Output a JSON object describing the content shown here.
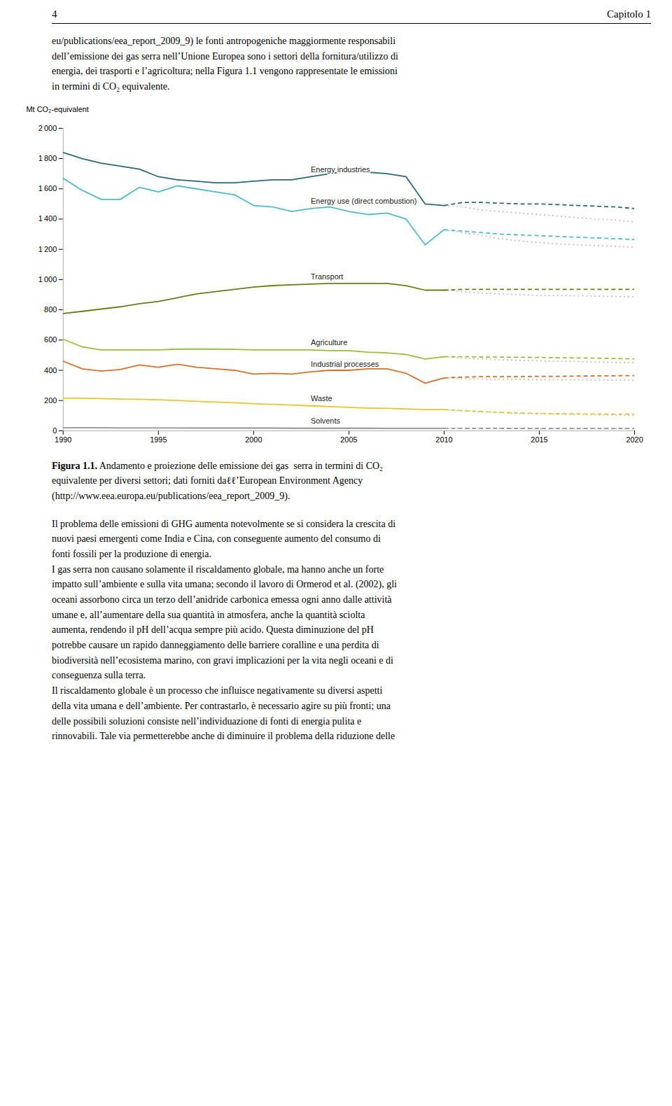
{
  "page": {
    "header_left": "4",
    "header_right": "Capitolo 1",
    "body_top": "eu/publications/eea_report_2009_9) le fonti antropogeniche maggiormente responsabili\ndell’emissione dei gas serra nell’Unione Europea sono i settori della fornitura/utilizzo di\nenergia, dei trasporti e l’agricoltura; nella Figura 1.1 vengono rappresentate le emissioni\nin termini di CO₂ equivalente.",
    "caption_bold": "Figura 1.1.",
    "caption": " Andamento e proiezione delle emissione dei gas  serra in termini di CO₂\nequivalente per diversi settori; dati forniti daℓℓ’European Environment Agency\n(http://www.eea.europa.eu/publications/eea_report_2009_9).",
    "body_bottom": "Il problema delle emissioni di GHG aumenta notevolmente se si considera la crescita di\nnuovi paesi emergenti come India e Cina, con conseguente aumento del consumo di\nfonti fossili per la produzione di energia.\nI gas serra non causano solamente il riscaldamento globale, ma hanno anche un forte\nimpatto sull’ambiente e sulla vita umana; secondo il lavoro di Ormerod et al. (2002), gli\noceani assorbono circa un terzo dell’anidride carbonica emessa ogni anno dalle attività\numane e, all’aumentare della sua quantità in atmosfera, anche la quantità sciolta\naumenta, rendendo il pH dell’acqua sempre più acido. Questa diminuzione del pH\npotrebbe causare un rapido danneggiamento delle barriere coralline e una perdita di\nbiodiversità nell’ecosistema marino, con gravi implicazioni per la vita negli oceani e di\nconseguenza sulla terra.\nIl riscaldamento globale è un processo che influisce negativamente su diversi aspetti\ndella vita umana e dell’ambiente. Per contrastarlo, è necessario agire su più fronti; una\ndelle possibili soluzioni consiste nell’individuazione di fonti di energia pulita e\nrinnovabili. Tale via permetterebbe anche di diminuire il problema della riduzione delle"
  },
  "chart_data": {
    "type": "line",
    "ylabel": "Mt CO₂-equivalent",
    "xlim": [
      1990,
      2020
    ],
    "ylim": [
      0,
      2000
    ],
    "xticks": [
      1990,
      1995,
      2000,
      2005,
      2010,
      2015,
      2020
    ],
    "yticks": [
      0,
      200,
      400,
      600,
      800,
      {
        "value": 1000,
        "label": "1 000"
      },
      {
        "value": 1200,
        "label": "1 200"
      },
      {
        "value": 1400,
        "label": "1 400"
      },
      {
        "value": 1600,
        "label": "1 600"
      },
      {
        "value": 1800,
        "label": "1 800"
      },
      {
        "value": 2000,
        "label": "2 000"
      }
    ],
    "grid": false,
    "series": [
      {
        "name": "Energy industries",
        "color": "#2a6a78",
        "line_style": "solid",
        "x": [
          1990,
          1991,
          1992,
          1993,
          1994,
          1995,
          1996,
          1997,
          1998,
          1999,
          2000,
          2001,
          2002,
          2003,
          2004,
          2005,
          2006,
          2007,
          2008,
          2009,
          2010
        ],
        "values": [
          1840,
          1800,
          1770,
          1750,
          1730,
          1680,
          1660,
          1650,
          1640,
          1640,
          1650,
          1660,
          1660,
          1680,
          1700,
          1720,
          1710,
          1700,
          1680,
          1500,
          1490
        ]
      },
      {
        "color": "#2a6a78",
        "line_style": "dashed",
        "x": [
          2010,
          2011,
          2012,
          2013,
          2014,
          2015,
          2016,
          2017,
          2018,
          2019,
          2020
        ],
        "values": [
          1490,
          1510,
          1510,
          1505,
          1500,
          1500,
          1495,
          1490,
          1485,
          1480,
          1470
        ]
      },
      {
        "color": "#c0c0c0",
        "line_style": "dotted",
        "x": [
          2010,
          2011,
          2012,
          2013,
          2014,
          2015,
          2016,
          2017,
          2018,
          2019,
          2020
        ],
        "values": [
          1490,
          1480,
          1460,
          1450,
          1440,
          1430,
          1420,
          1410,
          1400,
          1395,
          1380
        ]
      },
      {
        "name": "Energy use (direct combustion)",
        "color": "#4abfc8",
        "line_style": "solid",
        "x": [
          1990,
          1991,
          1992,
          1993,
          1994,
          1995,
          1996,
          1997,
          1998,
          1999,
          2000,
          2001,
          2002,
          2003,
          2004,
          2005,
          2006,
          2007,
          2008,
          2009,
          2010
        ],
        "values": [
          1670,
          1590,
          1530,
          1530,
          1610,
          1580,
          1620,
          1600,
          1580,
          1560,
          1490,
          1480,
          1450,
          1470,
          1480,
          1450,
          1430,
          1440,
          1400,
          1230,
          1330
        ]
      },
      {
        "color": "#4abfc8",
        "line_style": "dashed",
        "x": [
          2010,
          2011,
          2012,
          2013,
          2014,
          2015,
          2016,
          2017,
          2018,
          2019,
          2020
        ],
        "values": [
          1330,
          1320,
          1310,
          1300,
          1295,
          1290,
          1285,
          1280,
          1275,
          1270,
          1265
        ]
      },
      {
        "color": "#c0c0c0",
        "line_style": "dotted",
        "x": [
          2010,
          2011,
          2012,
          2013,
          2014,
          2015,
          2016,
          2017,
          2018,
          2019,
          2020
        ],
        "values": [
          1330,
          1310,
          1290,
          1270,
          1255,
          1245,
          1235,
          1230,
          1225,
          1220,
          1215
        ]
      },
      {
        "name": "Transport",
        "color": "#6b7c10",
        "line_style": "solid",
        "x": [
          1990,
          1991,
          1992,
          1993,
          1994,
          1995,
          1996,
          1997,
          1998,
          1999,
          2000,
          2001,
          2002,
          2003,
          2004,
          2005,
          2006,
          2007,
          2008,
          2009,
          2010
        ],
        "values": [
          775,
          790,
          805,
          820,
          840,
          855,
          880,
          905,
          920,
          935,
          950,
          960,
          965,
          970,
          975,
          975,
          975,
          975,
          960,
          930,
          930
        ]
      },
      {
        "color": "#6b7c10",
        "line_style": "dashed",
        "x": [
          2010,
          2011,
          2012,
          2013,
          2014,
          2015,
          2016,
          2017,
          2018,
          2019,
          2020
        ],
        "values": [
          930,
          935,
          935,
          935,
          935,
          935,
          935,
          935,
          935,
          935,
          935
        ]
      },
      {
        "color": "#c0c0c0",
        "line_style": "dotted",
        "x": [
          2010,
          2011,
          2012,
          2013,
          2014,
          2015,
          2016,
          2017,
          2018,
          2019,
          2020
        ],
        "values": [
          930,
          920,
          910,
          905,
          900,
          895,
          895,
          893,
          890,
          888,
          885
        ]
      },
      {
        "name": "Agriculture",
        "color": "#98c030",
        "line_style": "solid",
        "x": [
          1990,
          1991,
          1992,
          1993,
          1994,
          1995,
          1996,
          1997,
          1998,
          1999,
          2000,
          2001,
          2002,
          2003,
          2004,
          2005,
          2006,
          2007,
          2008,
          2009,
          2010
        ],
        "values": [
          605,
          555,
          535,
          535,
          535,
          535,
          540,
          540,
          540,
          538,
          535,
          535,
          535,
          535,
          530,
          530,
          520,
          515,
          505,
          475,
          490
        ]
      },
      {
        "color": "#98c030",
        "line_style": "dashed",
        "x": [
          2010,
          2011,
          2012,
          2013,
          2014,
          2015,
          2016,
          2017,
          2018,
          2019,
          2020
        ],
        "values": [
          490,
          490,
          488,
          487,
          486,
          485,
          483,
          482,
          480,
          478,
          475
        ]
      },
      {
        "color": "#c0c0c0",
        "line_style": "dotted",
        "x": [
          2010,
          2011,
          2012,
          2013,
          2014,
          2015,
          2016,
          2017,
          2018,
          2019,
          2020
        ],
        "values": [
          490,
          480,
          475,
          470,
          465,
          462,
          460,
          458,
          455,
          452,
          450
        ]
      },
      {
        "name": "Industrial processes",
        "color": "#e07020",
        "line_style": "solid",
        "x": [
          1990,
          1991,
          1992,
          1993,
          1994,
          1995,
          1996,
          1997,
          1998,
          1999,
          2000,
          2001,
          2002,
          2003,
          2004,
          2005,
          2006,
          2007,
          2008,
          2009,
          2010
        ],
        "values": [
          460,
          410,
          395,
          405,
          435,
          420,
          440,
          420,
          410,
          400,
          375,
          380,
          375,
          390,
          400,
          400,
          410,
          410,
          380,
          315,
          350
        ]
      },
      {
        "color": "#e07020",
        "line_style": "dashed",
        "x": [
          2010,
          2011,
          2012,
          2013,
          2014,
          2015,
          2016,
          2017,
          2018,
          2019,
          2020
        ],
        "values": [
          350,
          355,
          358,
          358,
          358,
          360,
          360,
          362,
          363,
          364,
          365
        ]
      },
      {
        "color": "#c0c0c0",
        "line_style": "dotted",
        "x": [
          2010,
          2011,
          2012,
          2013,
          2014,
          2015,
          2016,
          2017,
          2018,
          2019,
          2020
        ],
        "values": [
          350,
          345,
          342,
          340,
          340,
          338,
          337,
          337,
          336,
          335,
          335
        ]
      },
      {
        "name": "Waste",
        "color": "#e8c820",
        "line_style": "solid",
        "x": [
          1990,
          1991,
          1992,
          1993,
          1994,
          1995,
          1996,
          1997,
          1998,
          1999,
          2000,
          2001,
          2002,
          2003,
          2004,
          2005,
          2006,
          2007,
          2008,
          2009,
          2010
        ],
        "values": [
          215,
          215,
          213,
          210,
          208,
          205,
          200,
          195,
          190,
          185,
          180,
          175,
          170,
          165,
          160,
          155,
          150,
          148,
          145,
          140,
          140
        ]
      },
      {
        "color": "#e8c820",
        "line_style": "dashed",
        "x": [
          2010,
          2011,
          2012,
          2013,
          2014,
          2015,
          2016,
          2017,
          2018,
          2019,
          2020
        ],
        "values": [
          140,
          133,
          127,
          122,
          118,
          115,
          113,
          112,
          111,
          110,
          110
        ]
      },
      {
        "color": "#c0c0c0",
        "line_style": "dotted",
        "x": [
          2010,
          2011,
          2012,
          2013,
          2014,
          2015,
          2016,
          2017,
          2018,
          2019,
          2020
        ],
        "values": [
          140,
          132,
          126,
          120,
          115,
          112,
          110,
          108,
          106,
          104,
          102
        ]
      },
      {
        "name": "Solvents",
        "color": "#909090",
        "line_style": "solid",
        "x": [
          1990,
          1991,
          1992,
          1993,
          1994,
          1995,
          1996,
          1997,
          1998,
          1999,
          2000,
          2001,
          2002,
          2003,
          2004,
          2005,
          2006,
          2007,
          2008,
          2009,
          2010
        ],
        "values": [
          20,
          20,
          20,
          19,
          19,
          19,
          19,
          18,
          18,
          18,
          18,
          18,
          17,
          17,
          17,
          17,
          17,
          16,
          16,
          16,
          16
        ]
      },
      {
        "color": "#909090",
        "line_style": "dashed",
        "x": [
          2010,
          2011,
          2012,
          2013,
          2014,
          2015,
          2016,
          2017,
          2018,
          2019,
          2020
        ],
        "values": [
          16,
          16,
          16,
          16,
          15,
          15,
          15,
          15,
          15,
          15,
          15
        ]
      },
      {
        "color": "#c0c0c0",
        "line_style": "dotted",
        "x": [
          2010,
          2011,
          2012,
          2013,
          2014,
          2015,
          2016,
          2017,
          2018,
          2019,
          2020
        ],
        "values": [
          16,
          16,
          15,
          15,
          15,
          14,
          14,
          14,
          14,
          14,
          14
        ]
      }
    ]
  }
}
